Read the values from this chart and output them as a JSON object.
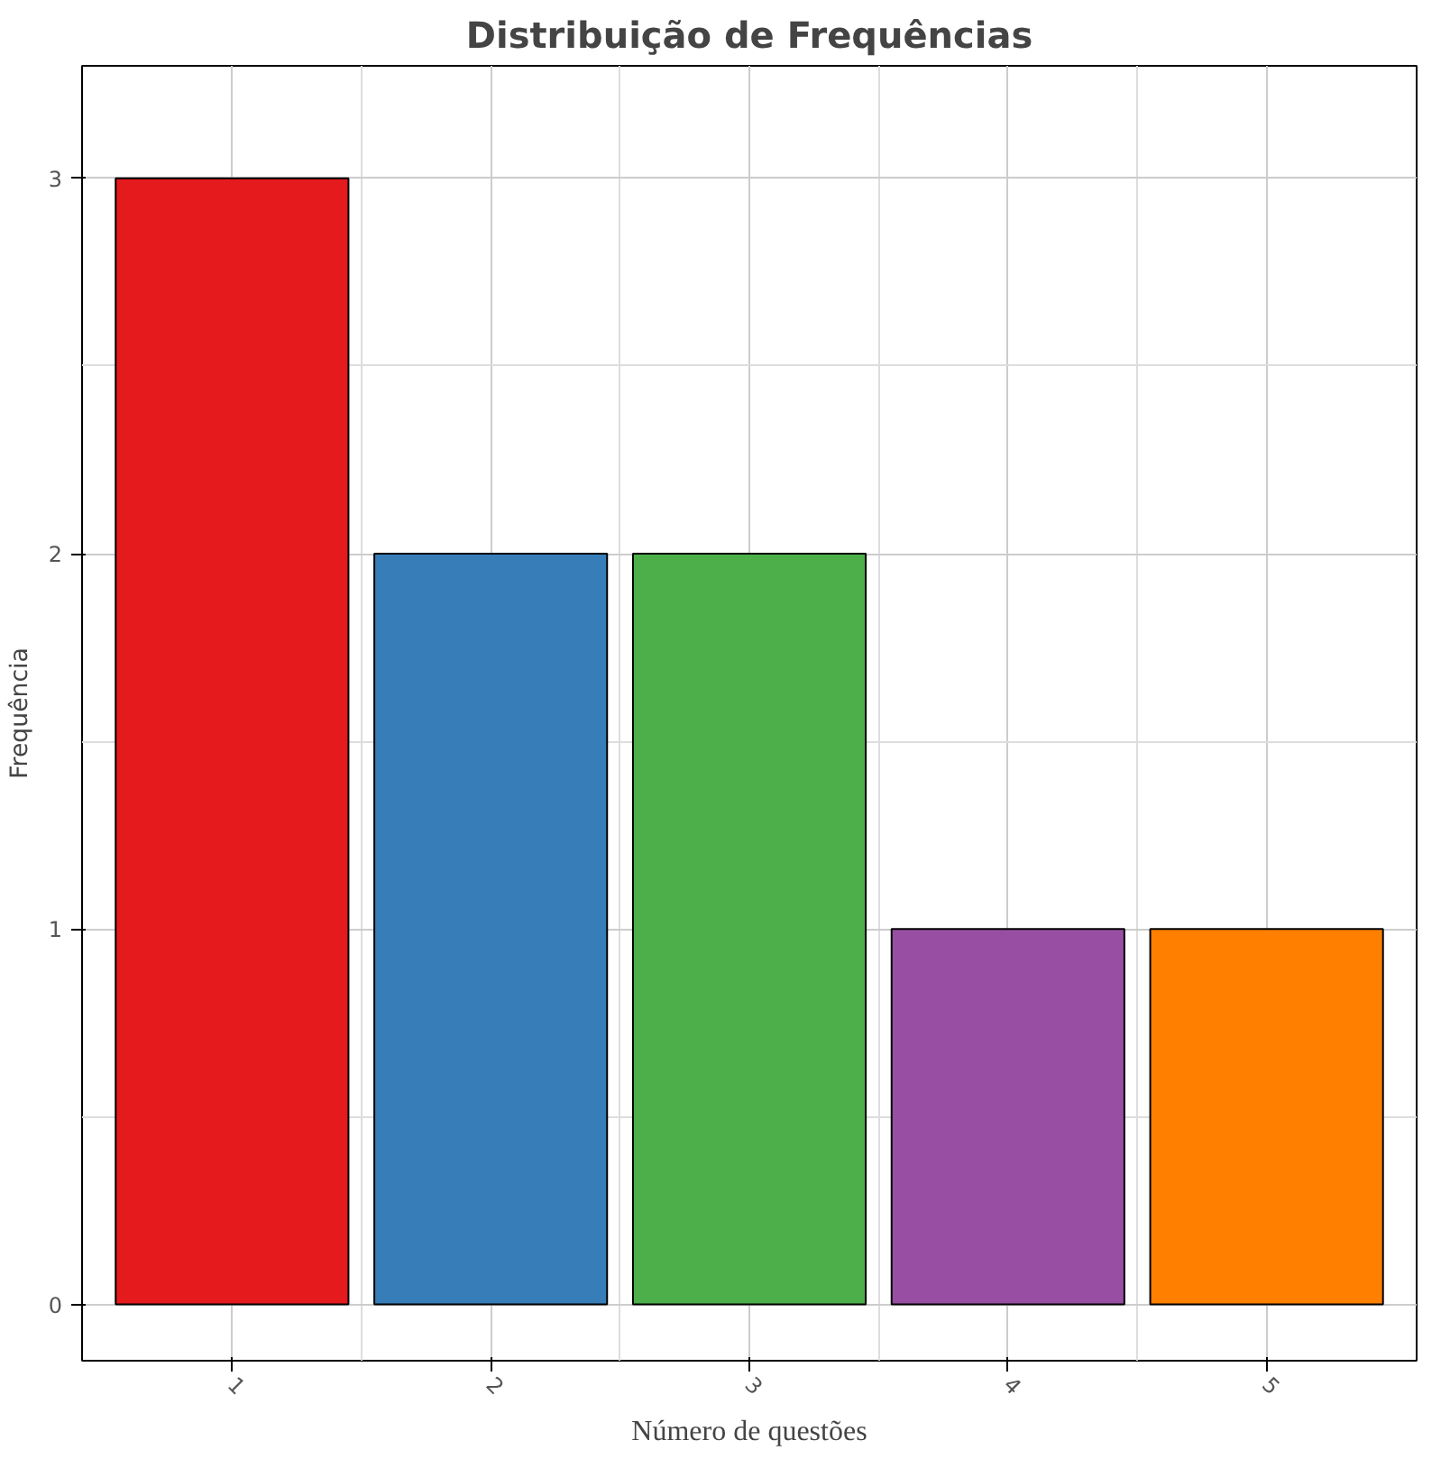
{
  "chart_data": {
    "type": "bar",
    "title": "Distribuição de Frequências",
    "xlabel": "Número de questões",
    "ylabel": "Frequência",
    "categories": [
      "1",
      "2",
      "3",
      "4",
      "5"
    ],
    "values": [
      3,
      2,
      2,
      1,
      1
    ],
    "colors": [
      "#e41a1c",
      "#377eb8",
      "#4daf4a",
      "#984ea3",
      "#ff7f00"
    ],
    "ylim": [
      -0.15,
      3.3
    ],
    "yticks": [
      0,
      1,
      2,
      3
    ],
    "grid": true
  }
}
